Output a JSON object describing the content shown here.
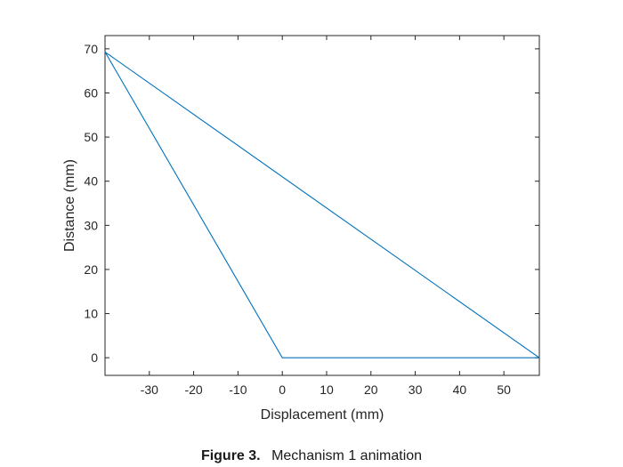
{
  "chart_data": {
    "type": "line",
    "title": "",
    "xlabel": "Displacement (mm)",
    "ylabel": "Distance (mm)",
    "xlim": [
      -40,
      58
    ],
    "ylim": [
      -4,
      73
    ],
    "xticks": [
      -30,
      -20,
      -10,
      0,
      10,
      20,
      30,
      40,
      50
    ],
    "yticks": [
      0,
      10,
      20,
      30,
      40,
      50,
      60,
      70
    ],
    "grid": false,
    "series": [
      {
        "color": "#0072BD",
        "x": [
          58,
          -40,
          0,
          58
        ],
        "y": [
          0,
          69.3,
          0,
          0
        ]
      }
    ]
  },
  "caption": {
    "label": "Figure 3.",
    "text": "Mechanism 1 animation"
  }
}
